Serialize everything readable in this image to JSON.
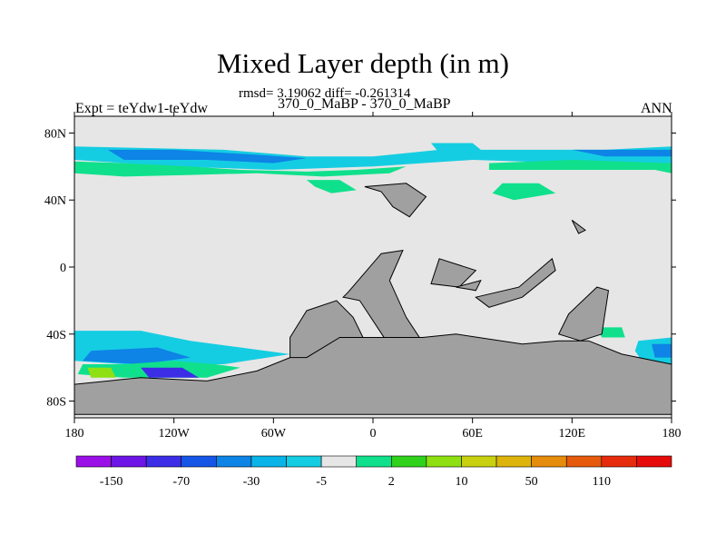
{
  "chart_data": {
    "type": "heatmap",
    "title": "Mixed Layer depth (in m)",
    "subtitle": "rmsd= 3.19062 diff= -0.261314",
    "left_label": "Expt = teYdw1-teYdw",
    "center_label": "370_0_MaBP - 370_0_MaBP",
    "right_label": "ANN",
    "xlim": [
      -180,
      180
    ],
    "ylim": [
      -90,
      90
    ],
    "x_ticks": [
      {
        "value": -180,
        "label": "180"
      },
      {
        "value": -120,
        "label": "120W"
      },
      {
        "value": -60,
        "label": "60W"
      },
      {
        "value": 0,
        "label": "0"
      },
      {
        "value": 60,
        "label": "60E"
      },
      {
        "value": 120,
        "label": "120E"
      },
      {
        "value": 180,
        "label": "180"
      }
    ],
    "y_ticks": [
      {
        "value": 80,
        "label": "80N"
      },
      {
        "value": 40,
        "label": "40N"
      },
      {
        "value": 0,
        "label": "0"
      },
      {
        "value": -40,
        "label": "40S"
      },
      {
        "value": -80,
        "label": "80S"
      }
    ],
    "colorbar": {
      "colors": [
        "#9b10e6",
        "#6d14e6",
        "#3c2ee6",
        "#1656e6",
        "#0d84e6",
        "#0ab4e8",
        "#15cde2",
        "#e6e6e6",
        "#10e08c",
        "#30d21c",
        "#8ee012",
        "#c8d010",
        "#dcb40c",
        "#e68c0c",
        "#e65a0c",
        "#e62c0c",
        "#e60c0c"
      ],
      "tick_labels": [
        {
          "boundary": 1,
          "label": "-150"
        },
        {
          "boundary": 3,
          "label": "-70"
        },
        {
          "boundary": 5,
          "label": "-30"
        },
        {
          "boundary": 7,
          "label": "-5"
        },
        {
          "boundary": 9,
          "label": "2"
        },
        {
          "boundary": 11,
          "label": "10"
        },
        {
          "boundary": 13,
          "label": "50"
        },
        {
          "boundary": 15,
          "label": "110"
        }
      ]
    },
    "land_color": "#a0a0a0",
    "background_color": "#e6e6e6",
    "land": [
      [
        [
          -15,
          -15
        ],
        [
          5,
          8
        ],
        [
          18,
          10
        ],
        [
          10,
          -8
        ],
        [
          20,
          -30
        ],
        [
          28,
          -42
        ],
        [
          8,
          -44
        ],
        [
          -8,
          -20
        ],
        [
          -18,
          -18
        ]
      ],
      [
        [
          -40,
          -26
        ],
        [
          -22,
          -20
        ],
        [
          -12,
          -30
        ],
        [
          -6,
          -42
        ],
        [
          -28,
          -52
        ],
        [
          -50,
          -58
        ],
        [
          -50,
          -42
        ]
      ],
      [
        [
          -5,
          48
        ],
        [
          20,
          50
        ],
        [
          32,
          42
        ],
        [
          22,
          30
        ],
        [
          12,
          36
        ],
        [
          5,
          45
        ]
      ],
      [
        [
          40,
          5
        ],
        [
          62,
          -2
        ],
        [
          52,
          -12
        ],
        [
          35,
          -10
        ]
      ],
      [
        [
          62,
          -18
        ],
        [
          88,
          -12
        ],
        [
          108,
          5
        ],
        [
          110,
          -2
        ],
        [
          90,
          -18
        ],
        [
          70,
          -24
        ]
      ],
      [
        [
          118,
          -28
        ],
        [
          135,
          -12
        ],
        [
          142,
          -14
        ],
        [
          138,
          -40
        ],
        [
          125,
          -44
        ],
        [
          112,
          -40
        ]
      ],
      [
        [
          -180,
          -70
        ],
        [
          -140,
          -66
        ],
        [
          -100,
          -68
        ],
        [
          -70,
          -62
        ],
        [
          -50,
          -54
        ],
        [
          -40,
          -54
        ],
        [
          -20,
          -42
        ],
        [
          0,
          -42
        ],
        [
          30,
          -42
        ],
        [
          50,
          -40
        ],
        [
          90,
          -46
        ],
        [
          112,
          -44
        ],
        [
          130,
          -44
        ],
        [
          150,
          -52
        ],
        [
          180,
          -58
        ],
        [
          180,
          -88
        ],
        [
          -180,
          -88
        ]
      ],
      [
        [
          50,
          -12
        ],
        [
          65,
          -8
        ],
        [
          62,
          -14
        ]
      ],
      [
        [
          120,
          28
        ],
        [
          128,
          22
        ],
        [
          124,
          20
        ]
      ]
    ],
    "anomalies": [
      {
        "color": "#15cde2",
        "poly": [
          [
            -180,
            72
          ],
          [
            -90,
            70
          ],
          [
            -40,
            66
          ],
          [
            0,
            66
          ],
          [
            40,
            70
          ],
          [
            90,
            70
          ],
          [
            140,
            70
          ],
          [
            180,
            72
          ],
          [
            180,
            60
          ],
          [
            120,
            62
          ],
          [
            60,
            64
          ],
          [
            0,
            60
          ],
          [
            -60,
            58
          ],
          [
            -120,
            60
          ],
          [
            -180,
            64
          ]
        ]
      },
      {
        "color": "#0d84e6",
        "poly": [
          [
            -160,
            70
          ],
          [
            -120,
            70
          ],
          [
            -70,
            67
          ],
          [
            -40,
            65
          ],
          [
            -60,
            62
          ],
          [
            -100,
            64
          ],
          [
            -150,
            64
          ]
        ]
      },
      {
        "color": "#0d84e6",
        "poly": [
          [
            120,
            70
          ],
          [
            180,
            70
          ],
          [
            180,
            66
          ],
          [
            140,
            66
          ]
        ]
      },
      {
        "color": "#10e08c",
        "poly": [
          [
            -180,
            63
          ],
          [
            -150,
            62
          ],
          [
            -110,
            60
          ],
          [
            -80,
            58
          ],
          [
            -40,
            57
          ],
          [
            -10,
            58
          ],
          [
            20,
            60
          ],
          [
            10,
            56
          ],
          [
            -30,
            54
          ],
          [
            -70,
            56
          ],
          [
            -110,
            55
          ],
          [
            -150,
            54
          ],
          [
            -180,
            56
          ]
        ]
      },
      {
        "color": "#10e08c",
        "poly": [
          [
            -40,
            52
          ],
          [
            -20,
            52
          ],
          [
            -10,
            46
          ],
          [
            -25,
            44
          ],
          [
            -35,
            48
          ]
        ]
      },
      {
        "color": "#10e08c",
        "poly": [
          [
            70,
            58
          ],
          [
            120,
            58
          ],
          [
            170,
            58
          ],
          [
            180,
            56
          ],
          [
            180,
            62
          ],
          [
            120,
            64
          ],
          [
            70,
            62
          ]
        ]
      },
      {
        "color": "#10e08c",
        "poly": [
          [
            78,
            50
          ],
          [
            100,
            50
          ],
          [
            110,
            44
          ],
          [
            85,
            40
          ],
          [
            72,
            44
          ]
        ]
      },
      {
        "color": "#15cde2",
        "poly": [
          [
            35,
            74
          ],
          [
            60,
            74
          ],
          [
            65,
            70
          ],
          [
            40,
            68
          ]
        ]
      },
      {
        "color": "#15cde2",
        "poly": [
          [
            -180,
            -38
          ],
          [
            -140,
            -38
          ],
          [
            -110,
            -44
          ],
          [
            -80,
            -48
          ],
          [
            -50,
            -52
          ],
          [
            -90,
            -58
          ],
          [
            -150,
            -58
          ],
          [
            -180,
            -56
          ]
        ]
      },
      {
        "color": "#0d84e6",
        "poly": [
          [
            -170,
            -50
          ],
          [
            -130,
            -48
          ],
          [
            -110,
            -54
          ],
          [
            -140,
            -58
          ],
          [
            -175,
            -56
          ]
        ]
      },
      {
        "color": "#10e08c",
        "poly": [
          [
            -175,
            -58
          ],
          [
            -150,
            -58
          ],
          [
            -120,
            -56
          ],
          [
            -95,
            -58
          ],
          [
            -80,
            -60
          ],
          [
            -100,
            -66
          ],
          [
            -150,
            -66
          ],
          [
            -178,
            -64
          ]
        ]
      },
      {
        "color": "#3c2ee6",
        "poly": [
          [
            -140,
            -60
          ],
          [
            -115,
            -60
          ],
          [
            -105,
            -66
          ],
          [
            -135,
            -66
          ]
        ]
      },
      {
        "color": "#8ee012",
        "poly": [
          [
            -172,
            -60
          ],
          [
            -158,
            -60
          ],
          [
            -155,
            -66
          ],
          [
            -170,
            -66
          ]
        ]
      },
      {
        "color": "#10e08c",
        "poly": [
          [
            135,
            -36
          ],
          [
            150,
            -36
          ],
          [
            152,
            -42
          ],
          [
            138,
            -42
          ]
        ]
      },
      {
        "color": "#15cde2",
        "poly": [
          [
            160,
            -44
          ],
          [
            180,
            -42
          ],
          [
            180,
            -58
          ],
          [
            162,
            -56
          ],
          [
            158,
            -50
          ]
        ]
      },
      {
        "color": "#0d84e6",
        "poly": [
          [
            168,
            -46
          ],
          [
            180,
            -46
          ],
          [
            180,
            -54
          ],
          [
            170,
            -54
          ]
        ]
      }
    ]
  }
}
